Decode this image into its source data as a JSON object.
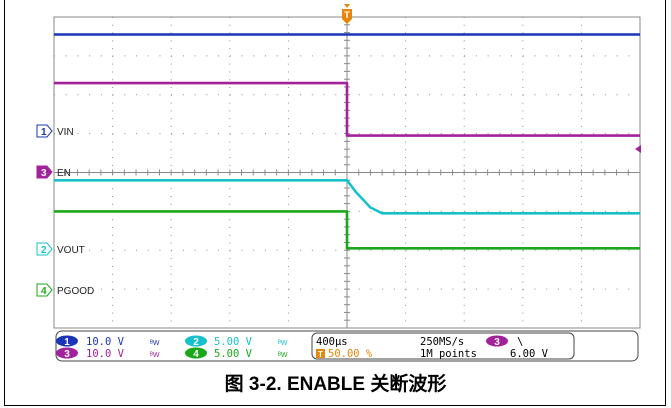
{
  "colors": {
    "ch1": "#1a35b8",
    "ch2": "#17c1cc",
    "ch3": "#a3219a",
    "ch4": "#1aa81a",
    "trigger": "#e8860a",
    "grid": "#8a8a8a"
  },
  "channels": [
    {
      "num": "1",
      "label": "VIN"
    },
    {
      "num": "3",
      "label": "EN"
    },
    {
      "num": "2",
      "label": "VOUT"
    },
    {
      "num": "4",
      "label": "PGOOD"
    }
  ],
  "trigger_marker": "T",
  "status_bar": {
    "ch1": {
      "num": "1",
      "scale": "10.0 V",
      "bw": "ᴮW"
    },
    "ch3": {
      "num": "3",
      "scale": "10.0 V",
      "bw": "ᴮW"
    },
    "ch2": {
      "num": "2",
      "scale": "5.00 V",
      "bw": "ᴮW"
    },
    "ch4": {
      "num": "4",
      "scale": "5.00 V",
      "bw": "ᴮW"
    },
    "timebase": "400µs",
    "trigger_pos": "50.00 %",
    "trigger_badge": "T",
    "sample_rate": "250MS/s",
    "record_length": "1M points",
    "trigger_channel": "3",
    "trigger_slope": "\\",
    "trigger_level": "6.00 V"
  },
  "caption": "图 3-2. ENABLE 关断波形",
  "chart_data": {
    "type": "line",
    "x_unit": "div",
    "x_range": [
      0,
      10
    ],
    "y_range": [
      -4,
      4
    ],
    "grid": true,
    "series": [
      {
        "name": "VIN",
        "color": "#1a35b8",
        "points": [
          [
            0,
            3.55
          ],
          [
            10,
            3.55
          ]
        ]
      },
      {
        "name": "EN",
        "color": "#a3219a",
        "points": [
          [
            0,
            2.3
          ],
          [
            5,
            2.3
          ],
          [
            5,
            0.95
          ],
          [
            10,
            0.95
          ]
        ]
      },
      {
        "name": "VOUT",
        "color": "#17c1cc",
        "points": [
          [
            0,
            -0.2
          ],
          [
            5,
            -0.2
          ],
          [
            5.15,
            -0.5
          ],
          [
            5.4,
            -0.9
          ],
          [
            5.6,
            -1.05
          ],
          [
            10,
            -1.05
          ]
        ]
      },
      {
        "name": "PGOOD",
        "color": "#1aa81a",
        "points": [
          [
            0,
            -1.0
          ],
          [
            5,
            -1.0
          ],
          [
            5,
            -1.95
          ],
          [
            10,
            -1.95
          ]
        ]
      }
    ]
  }
}
